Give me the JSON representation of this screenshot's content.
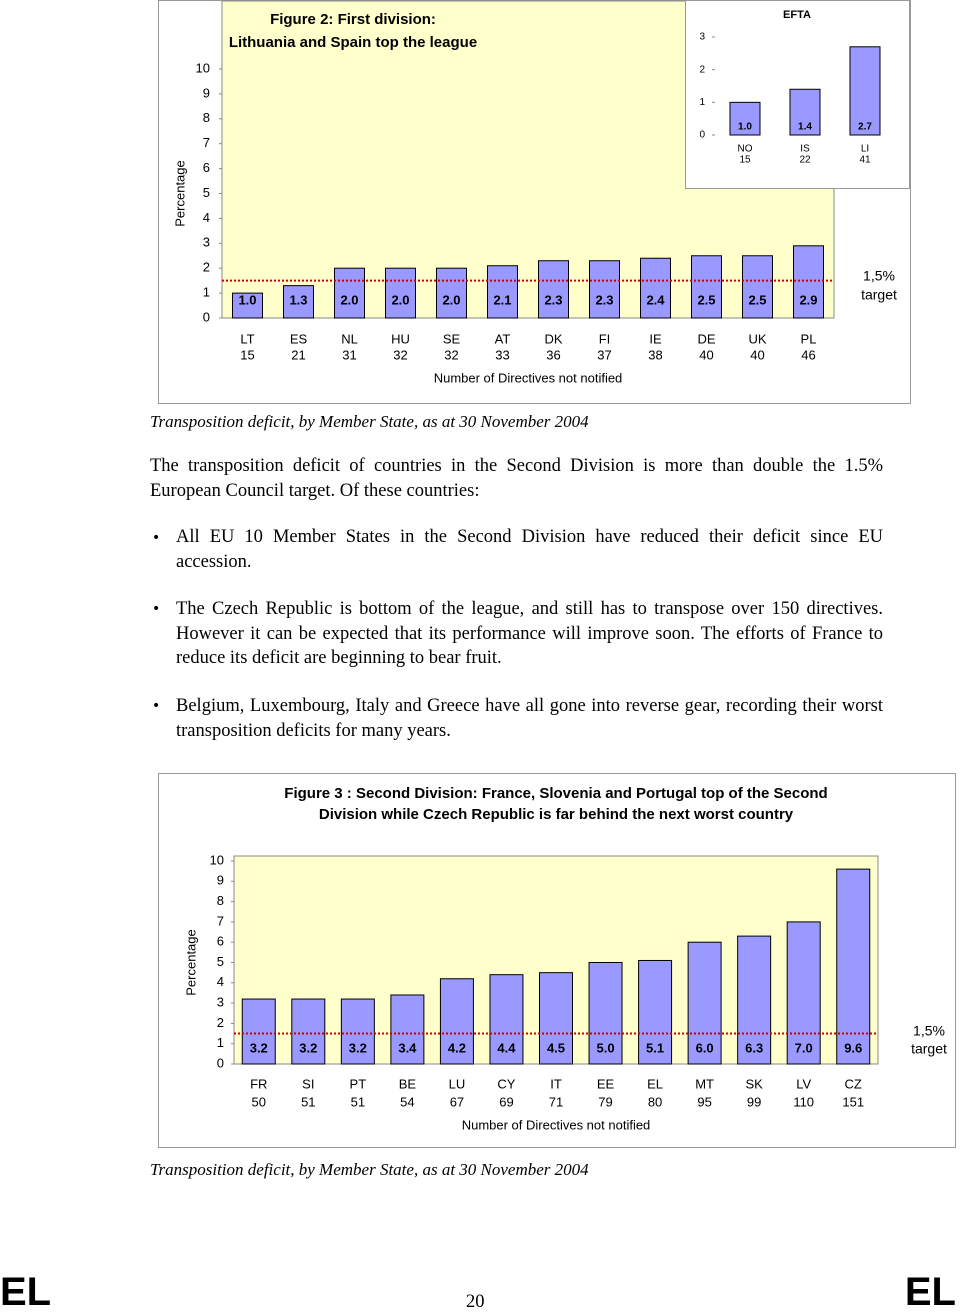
{
  "chart_data": [
    {
      "type": "bar",
      "title": [
        "Figure 2: First division:",
        "Lithuania and Spain top the league"
      ],
      "y_label": "Percentage",
      "x_label": "Number of Directives not notified",
      "categories": [
        "LT",
        "ES",
        "NL",
        "HU",
        "SE",
        "AT",
        "DK",
        "FI",
        "IE",
        "DE",
        "UK",
        "PL"
      ],
      "category_counts": [
        15,
        21,
        31,
        32,
        32,
        33,
        36,
        37,
        38,
        40,
        40,
        46
      ],
      "values": [
        1.0,
        1.3,
        2.0,
        2.0,
        2.0,
        2.1,
        2.3,
        2.3,
        2.4,
        2.5,
        2.5,
        2.9
      ],
      "value_labels": [
        "1.0",
        "1.3",
        "2.0",
        "2.0",
        "2.0",
        "2.1",
        "2.3",
        "2.3",
        "2.4",
        "2.5",
        "2.5",
        "2.9"
      ],
      "color": "#9999ff",
      "background": "#ffffcc",
      "ylim": [
        0,
        10
      ],
      "yticks": [
        0,
        1,
        2,
        3,
        4,
        5,
        6,
        7,
        8,
        9,
        10
      ],
      "target": {
        "value": 1.5,
        "label": [
          "1,5%",
          "target"
        ],
        "color": "#cc0000"
      }
    },
    {
      "type": "bar",
      "title": [
        "EFTA"
      ],
      "categories": [
        "NO",
        "IS",
        "LI"
      ],
      "category_counts": [
        15,
        22,
        41
      ],
      "values": [
        1.0,
        1.4,
        2.7
      ],
      "value_labels": [
        "1.0",
        "1.4",
        "2.7"
      ],
      "color": "#9999ff",
      "ylim": [
        0,
        3
      ],
      "yticks": [
        0,
        1,
        2,
        3
      ]
    },
    {
      "type": "bar",
      "title": [
        "Figure 3 : Second Division: France, Slovenia and Portugal top of the Second",
        "Division while Czech Republic is far behind the next worst country"
      ],
      "y_label": "Percentage",
      "x_label": "Number of Directives not notified",
      "categories": [
        "FR",
        "SI",
        "PT",
        "BE",
        "LU",
        "CY",
        "IT",
        "EE",
        "EL",
        "MT",
        "SK",
        "LV",
        "CZ"
      ],
      "category_counts": [
        50,
        51,
        51,
        54,
        67,
        69,
        71,
        79,
        80,
        95,
        99,
        110,
        151
      ],
      "values": [
        3.2,
        3.2,
        3.2,
        3.4,
        4.2,
        4.4,
        4.5,
        5.0,
        5.1,
        6.0,
        6.3,
        7.0,
        9.6
      ],
      "value_labels": [
        "3.2",
        "3.2",
        "3.2",
        "3.4",
        "4.2",
        "4.4",
        "4.5",
        "5.0",
        "5.1",
        "6.0",
        "6.3",
        "7.0",
        "9.6"
      ],
      "color": "#9999ff",
      "background": "#ffffcc",
      "ylim": [
        0,
        10
      ],
      "yticks": [
        0,
        1,
        2,
        3,
        4,
        5,
        6,
        7,
        8,
        9,
        10
      ],
      "target": {
        "value": 1.5,
        "label": [
          "1,5%",
          "target"
        ],
        "color": "#cc0000"
      }
    }
  ],
  "captions": [
    "Transposition deficit, by Member State, as at 30 November 2004",
    "Transposition deficit, by Member State, as at 30 November 2004"
  ],
  "paragraph": "The transposition deficit of countries in the Second Division is more than double the 1.5% European Council target. Of these countries:",
  "bullets": [
    "All EU 10 Member States in the Second Division have reduced their deficit since EU accession.",
    "The Czech Republic is bottom of the league, and still has to transpose over 150 directives. However it can be expected that its performance will improve soon. The efforts of France to reduce its deficit are beginning to bear fruit.",
    "Belgium, Luxembourg, Italy and Greece have all gone into reverse gear, recording their worst transposition deficits for many years."
  ],
  "footer": {
    "left": "EL",
    "page": "20",
    "right": "EL"
  }
}
